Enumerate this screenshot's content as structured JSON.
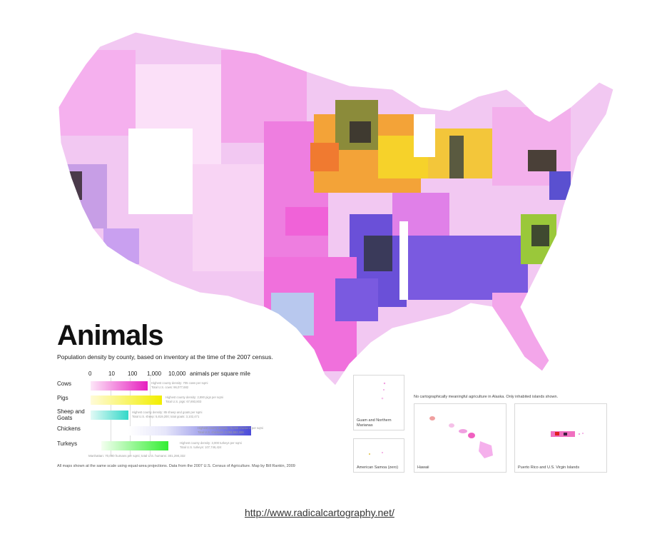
{
  "title": "Animals",
  "subtitle": "Population density by county, based on inventory at the time of the 2007 census.",
  "scale": {
    "ticks": [
      "0",
      "10",
      "100",
      "1,000",
      "10,000"
    ],
    "unit_label": "animals per square mile"
  },
  "legend": [
    {
      "label": "Cows",
      "color": "#e61fbf",
      "note1": "Highest county density: 705 cows per sqmi",
      "note2": "Total U.S. cows: 96,077,682"
    },
    {
      "label": "Pigs",
      "color": "#f2ee00",
      "note1": "Highest county density: 2,890 pigs per sqmi",
      "note2": "Total U.S. pigs: 67,893,803"
    },
    {
      "label": "Sheep and Goats",
      "color": "#33d8c8",
      "note1": "Highest county density: 85 sheep and goats per sqmi",
      "note2": "Total U.S. sheep: 5,819,200; total goats: 3,102,471"
    },
    {
      "label": "Chickens",
      "color": "#4a4ad8",
      "note1": "Highest county density: 75,000 chickens per sqmi",
      "note2": "Total U.S. chickens: 2,084,562,326"
    },
    {
      "label": "Turkeys",
      "color": "#33ee33",
      "note1": "Highest county density: 3,000 turkeys per sqmi",
      "note2": "Total U.S. turkeys: 107,746,424"
    }
  ],
  "human_note": "Manhattan: 70,000 humans per sqmi; total U.S. humans: 301,290,332",
  "footnote": "All maps shown at the same scale using equal-area projections. Data from the 2007 U.S. Census of Agriculture. Map by Bill Rankin, 2009",
  "insets": {
    "guam": "Guam and Northern Marianas",
    "samoa": "American Samoa (zero)",
    "hawaii": "Hawaii",
    "puerto_rico": "Puerto Rico and U.S. Virgin Islands",
    "alaska_note": "No cartographically meaningful agriculture in Alaska. Only inhabited islands shown."
  },
  "url": "http://www.radicalcartography.net/",
  "colors": {
    "cows": "#e61fbf",
    "pigs": "#f2ee00",
    "sheep_goats": "#33d8c8",
    "chickens": "#4a4ad8",
    "turkeys": "#33ee33",
    "dense_mix": "#3a3a3a",
    "orange_mix": "#f39a2a"
  }
}
